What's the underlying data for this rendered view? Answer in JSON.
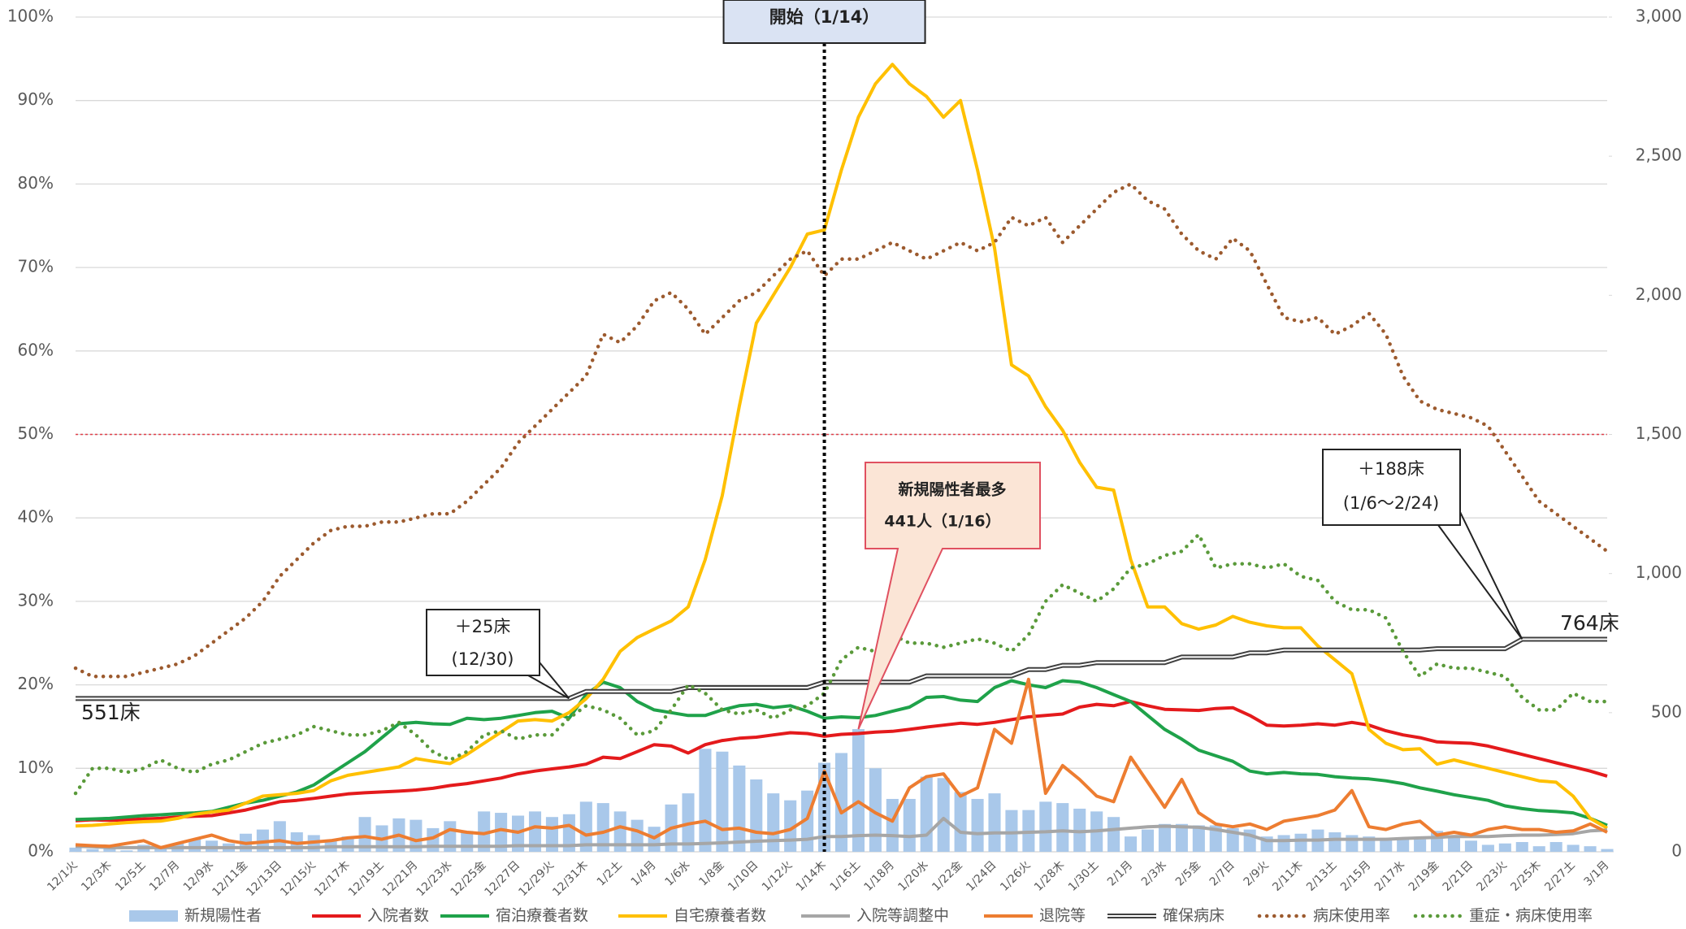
{
  "chart_data": {
    "type": "combo",
    "categories": [
      "12/1火",
      null,
      "12/3木",
      null,
      "12/5土",
      null,
      "12/7月",
      null,
      "12/9水",
      null,
      "12/11金",
      null,
      "12/13日",
      null,
      "12/15火",
      null,
      "12/17木",
      null,
      "12/19土",
      null,
      "12/21月",
      null,
      "12/23水",
      null,
      "12/25金",
      null,
      "12/27日",
      null,
      "12/29火",
      null,
      "12/31木",
      null,
      "1/2土",
      null,
      "1/4月",
      null,
      "1/6水",
      null,
      "1/8金",
      null,
      "1/10日",
      null,
      "1/12火",
      null,
      "1/14木",
      null,
      "1/16土",
      null,
      "1/18月",
      null,
      "1/20水",
      null,
      "1/22金",
      null,
      "1/24日",
      null,
      "1/26火",
      null,
      "1/28木",
      null,
      "1/30土",
      null,
      "2/1月",
      null,
      "2/3水",
      null,
      "2/5金",
      null,
      "2/7日",
      null,
      "2/9火",
      null,
      "2/11木",
      null,
      "2/13土",
      null,
      "2/15月",
      null,
      "2/17水",
      null,
      "2/19金",
      null,
      "2/21日",
      null,
      "2/23火",
      null,
      "2/25木",
      null,
      "2/27土",
      null,
      "3/1月"
    ],
    "ylim": [
      0,
      100
    ],
    "yticks": [
      {
        "value": 0,
        "label": "0%"
      },
      {
        "value": 10,
        "label": "10%"
      },
      {
        "value": 20,
        "label": "20%"
      },
      {
        "value": 30,
        "label": "30%"
      },
      {
        "value": 40,
        "label": "40%"
      },
      {
        "value": 50,
        "label": "50%"
      },
      {
        "value": 60,
        "label": "60%"
      },
      {
        "value": 70,
        "label": "70%"
      },
      {
        "value": 80,
        "label": "80%"
      },
      {
        "value": 90,
        "label": "90%"
      },
      {
        "value": 100,
        "label": "100%"
      }
    ],
    "y2lim": [
      0,
      3000
    ],
    "y2ticks": [
      0,
      500,
      {
        "value": 1000,
        "label": "1,000"
      },
      {
        "value": 1500,
        "label": "1,500"
      },
      {
        "value": 2000,
        "label": "2,000"
      },
      {
        "value": 2500,
        "label": "2,500"
      },
      {
        "value": 3000,
        "label": "3,000"
      }
    ],
    "grid": true,
    "reference_line": {
      "value": 50,
      "color": "#e0404a"
    },
    "series": [
      {
        "name": "新規陽性者",
        "type": "bar",
        "axis": "y2",
        "color": "#a9c8ea",
        "values": [
          15,
          10,
          20,
          5,
          25,
          15,
          30,
          45,
          40,
          30,
          65,
          80,
          110,
          70,
          60,
          40,
          55,
          125,
          95,
          120,
          115,
          85,
          110,
          75,
          145,
          140,
          130,
          145,
          125,
          135,
          180,
          175,
          145,
          115,
          90,
          170,
          210,
          370,
          360,
          310,
          260,
          210,
          185,
          220,
          320,
          355,
          441,
          300,
          190,
          190,
          270,
          265,
          215,
          190,
          210,
          150,
          150,
          180,
          175,
          155,
          145,
          125,
          55,
          80,
          100,
          100,
          95,
          95,
          85,
          80,
          55,
          60,
          65,
          80,
          70,
          60,
          55,
          50,
          50,
          45,
          75,
          60,
          40,
          25,
          30,
          35,
          20,
          35,
          25,
          20,
          10
        ]
      },
      {
        "name": "入院者数",
        "type": "line",
        "axis": "y2",
        "color": "#e41a1c",
        "values": [
          112,
          115,
          113,
          115,
          118,
          120,
          125,
          128,
          130,
          140,
          150,
          165,
          180,
          185,
          192,
          200,
          208,
          212,
          215,
          218,
          222,
          228,
          238,
          245,
          255,
          265,
          280,
          290,
          298,
          305,
          315,
          340,
          335,
          360,
          385,
          380,
          355,
          385,
          400,
          408,
          412,
          420,
          428,
          425,
          415,
          422,
          425,
          430,
          433,
          440,
          448,
          455,
          462,
          458,
          465,
          475,
          485,
          490,
          495,
          520,
          530,
          525,
          540,
          525,
          512,
          510,
          508,
          515,
          518,
          490,
          455,
          452,
          455,
          460,
          455,
          465,
          455,
          435,
          420,
          410,
          395,
          392,
          390,
          380,
          365,
          350,
          335,
          320,
          305,
          290,
          272
        ]
      },
      {
        "name": "宿泊療養者数",
        "type": "line",
        "axis": "y2",
        "color": "#1fa24a",
        "values": [
          116,
          118,
          120,
          125,
          130,
          133,
          137,
          140,
          145,
          160,
          175,
          185,
          200,
          215,
          240,
          280,
          320,
          360,
          410,
          460,
          465,
          460,
          458,
          480,
          475,
          480,
          490,
          500,
          505,
          480,
          565,
          610,
          590,
          540,
          510,
          500,
          490,
          490,
          510,
          525,
          530,
          518,
          525,
          505,
          480,
          485,
          482,
          490,
          505,
          520,
          555,
          558,
          545,
          540,
          590,
          615,
          600,
          590,
          615,
          610,
          590,
          565,
          540,
          490,
          440,
          405,
          365,
          345,
          325,
          290,
          280,
          285,
          280,
          278,
          270,
          265,
          262,
          255,
          245,
          230,
          218,
          205,
          195,
          185,
          165,
          155,
          148,
          145,
          140,
          120,
          95
        ]
      },
      {
        "name": "自宅療養者数",
        "type": "line",
        "axis": "y2",
        "color": "#ffc000",
        "values": [
          93,
          95,
          100,
          105,
          108,
          110,
          120,
          135,
          143,
          150,
          175,
          200,
          205,
          210,
          220,
          255,
          275,
          285,
          295,
          305,
          335,
          325,
          317,
          350,
          390,
          430,
          470,
          475,
          470,
          500,
          550,
          620,
          720,
          770,
          800,
          830,
          880,
          1050,
          1280,
          1600,
          1900,
          2000,
          2100,
          2220,
          2235,
          2450,
          2640,
          2760,
          2830,
          2760,
          2715,
          2640,
          2700,
          2450,
          2170,
          1750,
          1710,
          1600,
          1515,
          1400,
          1310,
          1300,
          1050,
          880,
          880,
          820,
          800,
          815,
          846,
          825,
          812,
          805,
          805,
          740,
          690,
          640,
          440,
          390,
          367,
          370,
          315,
          330,
          315,
          300,
          285,
          270,
          255,
          250,
          200,
          120,
          85
        ]
      },
      {
        "name": "入院等調整中",
        "type": "line",
        "axis": "y2",
        "color": "#a6a6a6",
        "values": [
          20,
          18,
          15,
          15,
          15,
          15,
          15,
          15,
          15,
          15,
          15,
          15,
          15,
          15,
          15,
          18,
          18,
          18,
          18,
          18,
          18,
          20,
          20,
          20,
          20,
          20,
          22,
          22,
          22,
          22,
          25,
          25,
          25,
          25,
          25,
          28,
          28,
          30,
          32,
          35,
          38,
          40,
          42,
          45,
          55,
          55,
          58,
          60,
          58,
          55,
          60,
          120,
          70,
          65,
          68,
          68,
          70,
          72,
          75,
          72,
          75,
          80,
          85,
          90,
          92,
          90,
          88,
          80,
          70,
          60,
          40,
          40,
          42,
          42,
          45,
          45,
          45,
          45,
          48,
          50,
          52,
          55,
          55,
          55,
          58,
          60,
          60,
          62,
          65,
          75,
          78
        ]
      },
      {
        "name": "退院等",
        "type": "line",
        "axis": "y2",
        "color": "#ed7d31",
        "values": [
          25,
          22,
          20,
          30,
          40,
          15,
          30,
          45,
          60,
          40,
          30,
          35,
          40,
          30,
          35,
          40,
          50,
          55,
          45,
          60,
          40,
          50,
          80,
          70,
          65,
          80,
          70,
          90,
          85,
          95,
          60,
          70,
          90,
          75,
          50,
          85,
          100,
          110,
          80,
          85,
          70,
          65,
          80,
          120,
          290,
          140,
          180,
          140,
          110,
          230,
          270,
          280,
          200,
          230,
          440,
          390,
          620,
          210,
          310,
          260,
          200,
          180,
          340,
          250,
          160,
          260,
          140,
          100,
          90,
          100,
          80,
          110,
          120,
          130,
          150,
          220,
          90,
          80,
          100,
          110,
          60,
          70,
          60,
          80,
          90,
          80,
          80,
          70,
          75,
          100,
          70
        ]
      },
      {
        "name": "確保病床",
        "type": "line",
        "axis": "y2",
        "line_style": "double",
        "color": "#404040",
        "values": [
          551,
          551,
          551,
          551,
          551,
          551,
          551,
          551,
          551,
          551,
          551,
          551,
          551,
          551,
          551,
          551,
          551,
          551,
          551,
          551,
          551,
          551,
          551,
          551,
          551,
          551,
          551,
          551,
          551,
          551,
          576,
          576,
          576,
          576,
          576,
          576,
          590,
          590,
          590,
          590,
          590,
          590,
          590,
          590,
          610,
          610,
          610,
          610,
          610,
          610,
          632,
          632,
          632,
          632,
          632,
          632,
          655,
          655,
          670,
          670,
          680,
          680,
          680,
          680,
          680,
          700,
          700,
          700,
          700,
          715,
          715,
          725,
          725,
          725,
          725,
          725,
          725,
          725,
          725,
          725,
          730,
          730,
          730,
          730,
          730,
          764,
          764,
          764,
          764,
          764,
          764
        ]
      },
      {
        "name": "病床使用率",
        "type": "line",
        "line_style": "dotted",
        "color": "#9c5a2e",
        "values": [
          22,
          21,
          21,
          21,
          21.5,
          22,
          22.5,
          23.5,
          25,
          26.5,
          28,
          30,
          33,
          35,
          37,
          38.5,
          39,
          39,
          39.5,
          39.5,
          40,
          40.5,
          40.5,
          42,
          44,
          46,
          49,
          51,
          53,
          55,
          57,
          62,
          61,
          63,
          66,
          67,
          65,
          62,
          64,
          66,
          67,
          69,
          71,
          72,
          69,
          71,
          71,
          72,
          73,
          72,
          71,
          72,
          73,
          72,
          73,
          76,
          75,
          76,
          73,
          75,
          77,
          79,
          80,
          78,
          77,
          74,
          72,
          71,
          73.5,
          72,
          68,
          64,
          63.5,
          64,
          62,
          63,
          64.5,
          62,
          57,
          54,
          53,
          52.5,
          52,
          51,
          48,
          45,
          42,
          40.5,
          39,
          37.5,
          36
        ]
      },
      {
        "name": "重症・病床使用率",
        "type": "line",
        "line_style": "dotted",
        "color": "#5a9a3a",
        "values": [
          7,
          10,
          10,
          9.5,
          10,
          11,
          10,
          9.5,
          10.5,
          11,
          12,
          13,
          13.5,
          14,
          15,
          14.5,
          14,
          14,
          14.5,
          15.5,
          14,
          12,
          11,
          12,
          14,
          14.5,
          13.5,
          14,
          14,
          16,
          17.5,
          17,
          16,
          14,
          14.5,
          17,
          20,
          19,
          17,
          16.5,
          17,
          16,
          17,
          17.5,
          19,
          23,
          24.5,
          24,
          26,
          25,
          25,
          24.5,
          25,
          25.5,
          25,
          24,
          26,
          30,
          32,
          31,
          30,
          31.5,
          34,
          34.5,
          35.5,
          36,
          38,
          34,
          34.5,
          34.5,
          34,
          34.5,
          33,
          32.5,
          30,
          29,
          29,
          28,
          24,
          21,
          22.5,
          22,
          22,
          21.5,
          21,
          18.5,
          17,
          17,
          19,
          18,
          18
        ]
      }
    ],
    "annotations": {
      "start": "開始（1/14）",
      "peak": [
        "新規陽性者最多",
        "441人（1/16）"
      ],
      "beds_added_1": [
        "＋25床",
        "(12/30)"
      ],
      "beds_added_2": [
        "＋188床",
        "(1/6～2/24)"
      ],
      "beds_start": "551床",
      "beds_end": "764床"
    }
  }
}
